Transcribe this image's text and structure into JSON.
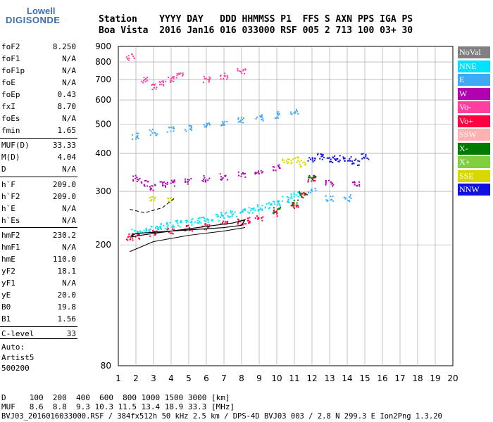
{
  "logo": {
    "line1": "Lowell",
    "line2": "DIGISONDE"
  },
  "header": {
    "line1": "Station    YYYY DAY   DDD HHMMSS P1  FFS S AXN PPS IGA PS",
    "line2": "Boa Vista  2016 Jan16 016 033000 RSF 005 2 713 100 03+ 30"
  },
  "sidebar": {
    "rows": [
      {
        "k": "foF2",
        "v": "8.250"
      },
      {
        "k": "foF1",
        "v": "N/A"
      },
      {
        "k": "foF1p",
        "v": "N/A"
      },
      {
        "k": "foE",
        "v": "N/A"
      },
      {
        "k": "foEp",
        "v": "0.43"
      },
      {
        "k": "fxI",
        "v": "8.70"
      },
      {
        "k": "foEs",
        "v": "N/A"
      },
      {
        "k": "fmin",
        "v": "1.65"
      },
      {
        "k": "MUF(D)",
        "v": "33.33"
      },
      {
        "k": "M(D)",
        "v": "4.04"
      },
      {
        "k": "D",
        "v": "N/A"
      },
      {
        "k": "h`F",
        "v": "209.0"
      },
      {
        "k": "h`F2",
        "v": "209.0"
      },
      {
        "k": "h`E",
        "v": "N/A"
      },
      {
        "k": "h`Es",
        "v": "N/A"
      },
      {
        "k": "hmF2",
        "v": "230.2"
      },
      {
        "k": "hmF1",
        "v": "N/A"
      },
      {
        "k": "hmE",
        "v": "110.0"
      },
      {
        "k": "yF2",
        "v": "18.1"
      },
      {
        "k": "yF1",
        "v": "N/A"
      },
      {
        "k": "yE",
        "v": "20.0"
      },
      {
        "k": "B0",
        "v": "19.8"
      },
      {
        "k": "B1",
        "v": "1.56"
      },
      {
        "k": "C-level",
        "v": "33"
      }
    ],
    "auto_lines": [
      "Auto:",
      "Artist5",
      "500200"
    ]
  },
  "legend": [
    {
      "label": "NoVal",
      "color": "#808080"
    },
    {
      "label": "NNE",
      "color": "#00e0ff"
    },
    {
      "label": "E",
      "color": "#3fa9f5"
    },
    {
      "label": "W",
      "color": "#b000b0"
    },
    {
      "label": "Vo-",
      "color": "#ff3fa0"
    },
    {
      "label": "Vo+",
      "color": "#ff0040"
    },
    {
      "label": "SSW",
      "color": "#ffb0b0"
    },
    {
      "label": "X-",
      "color": "#007a00"
    },
    {
      "label": "X+",
      "color": "#7fcf3f"
    },
    {
      "label": "SSE",
      "color": "#d8d800"
    },
    {
      "label": "NNW",
      "color": "#1010e0"
    }
  ],
  "footer": {
    "d_line": "D     100  200  400  600  800 1000 1500 3000 [km]",
    "muf_line": "MUF   8.6  8.8  9.3 10.3 11.5 13.4 18.9 33.3 [MHz]",
    "file_line": "BVJ03_2016016033000.RSF / 384fx512h 50 kHz 2.5 km / DPS-4D BVJ03 003 / 2.8 N 299.3 E Ion2Png 1.3.20"
  },
  "chart_data": {
    "type": "scatter",
    "title": "",
    "xlabel": "",
    "ylabel": "",
    "xlim": [
      1,
      20
    ],
    "ylim": [
      80,
      900
    ],
    "x_scale": "linear",
    "y_scale": "log",
    "grid": true,
    "x_ticks": [
      1,
      2,
      3,
      4,
      5,
      6,
      7,
      8,
      9,
      10,
      11,
      12,
      13,
      14,
      15,
      16,
      17,
      18,
      19,
      20
    ],
    "y_ticks": [
      80,
      200,
      300,
      400,
      500,
      600,
      700,
      800,
      900
    ],
    "series": [
      {
        "name": "NNE",
        "color": "#00e0ff",
        "x": [
          2.0,
          2.4,
          2.8,
          3.2,
          3.6,
          4.0,
          4.5,
          5.0,
          5.5,
          6.0,
          6.5,
          7.0,
          7.5,
          8.0,
          8.5,
          9.0,
          9.5,
          10.0,
          10.5,
          11.0
        ],
        "y": [
          220,
          222,
          225,
          228,
          230,
          232,
          235,
          238,
          240,
          243,
          246,
          250,
          253,
          256,
          260,
          265,
          270,
          276,
          282,
          292
        ]
      },
      {
        "name": "E",
        "color": "#3fa9f5",
        "x": [
          2.0,
          3.0,
          4.0,
          5.0,
          6.0,
          7.0,
          8.0,
          9.0,
          10.0,
          11.0,
          12.0,
          13.0,
          14.0
        ],
        "y": [
          455,
          470,
          478,
          485,
          495,
          505,
          515,
          525,
          535,
          545,
          300,
          285,
          285
        ]
      },
      {
        "name": "W",
        "color": "#b000b0",
        "x": [
          2.0,
          2.5,
          3.0,
          3.5,
          4.0,
          5.0,
          6.0,
          7.0,
          8.0,
          9.0,
          10.0,
          12.0,
          13.0,
          14.5
        ],
        "y": [
          330,
          320,
          310,
          315,
          320,
          325,
          330,
          335,
          340,
          345,
          360,
          330,
          320,
          320
        ]
      },
      {
        "name": "Vo+",
        "color": "#ff0040",
        "x": [
          1.65,
          2.0,
          3.0,
          4.0,
          5.0,
          6.0,
          7.0,
          8.0,
          8.25,
          9.0,
          10.0,
          11.0,
          11.5,
          12.0
        ],
        "y": [
          212,
          214,
          218,
          222,
          226,
          230,
          234,
          238,
          240,
          245,
          255,
          270,
          290,
          330
        ]
      },
      {
        "name": "NNW",
        "color": "#1010e0",
        "x": [
          12.0,
          12.5,
          13.0,
          13.5,
          14.0,
          14.5,
          15.0
        ],
        "y": [
          385,
          390,
          380,
          385,
          380,
          375,
          390
        ]
      },
      {
        "name": "SSE",
        "color": "#d8d800",
        "x": [
          10.5,
          11.0,
          11.5,
          3.0,
          4.0
        ],
        "y": [
          375,
          380,
          370,
          285,
          280
        ]
      },
      {
        "name": "X-",
        "color": "#007a00",
        "x": [
          10.0,
          11.0,
          11.5,
          12.0
        ],
        "y": [
          260,
          275,
          295,
          330
        ]
      },
      {
        "name": "Vo-",
        "color": "#ff3fa0",
        "x": [
          1.7,
          2.5,
          3.0,
          3.5,
          4.0,
          4.5,
          6.0,
          7.0,
          8.0
        ],
        "y": [
          830,
          700,
          660,
          680,
          700,
          720,
          700,
          720,
          745
        ]
      }
    ]
  }
}
